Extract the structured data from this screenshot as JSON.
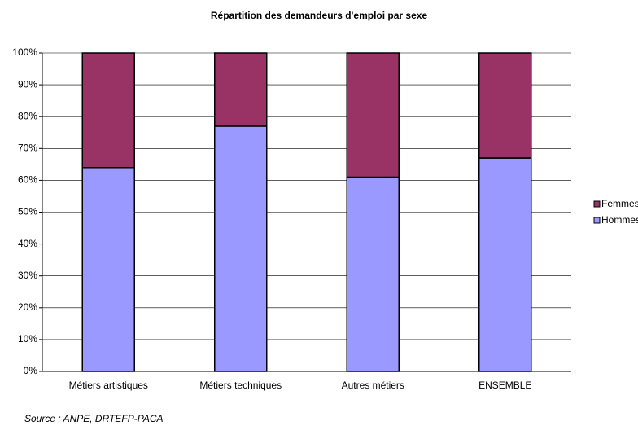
{
  "chart_data": {
    "type": "stacked_bar",
    "title": "Répartition des demandeurs d'emploi par sexe",
    "categories": [
      "Métiers artistiques",
      "Métiers techniques",
      "Autres métiers",
      "ENSEMBLE"
    ],
    "series": [
      {
        "name": "Hommes",
        "color": "#9999ff",
        "values": [
          64,
          77,
          61,
          67
        ]
      },
      {
        "name": "Femmes",
        "color": "#993366",
        "values": [
          36,
          23,
          39,
          33
        ]
      }
    ],
    "ylim": [
      0,
      100
    ],
    "yticks": [
      {
        "value": 0,
        "label": "0%"
      },
      {
        "value": 10,
        "label": "10%"
      },
      {
        "value": 20,
        "label": "20%"
      },
      {
        "value": 30,
        "label": "30%"
      },
      {
        "value": 40,
        "label": "40%"
      },
      {
        "value": 50,
        "label": "50%"
      },
      {
        "value": 60,
        "label": "60%"
      },
      {
        "value": 70,
        "label": "70%"
      },
      {
        "value": 80,
        "label": "80%"
      },
      {
        "value": 90,
        "label": "90%"
      },
      {
        "value": 100,
        "label": "100%"
      }
    ],
    "grid": true,
    "legend": "right",
    "source": "Source : ANPE, DRTEFP-PACA"
  }
}
